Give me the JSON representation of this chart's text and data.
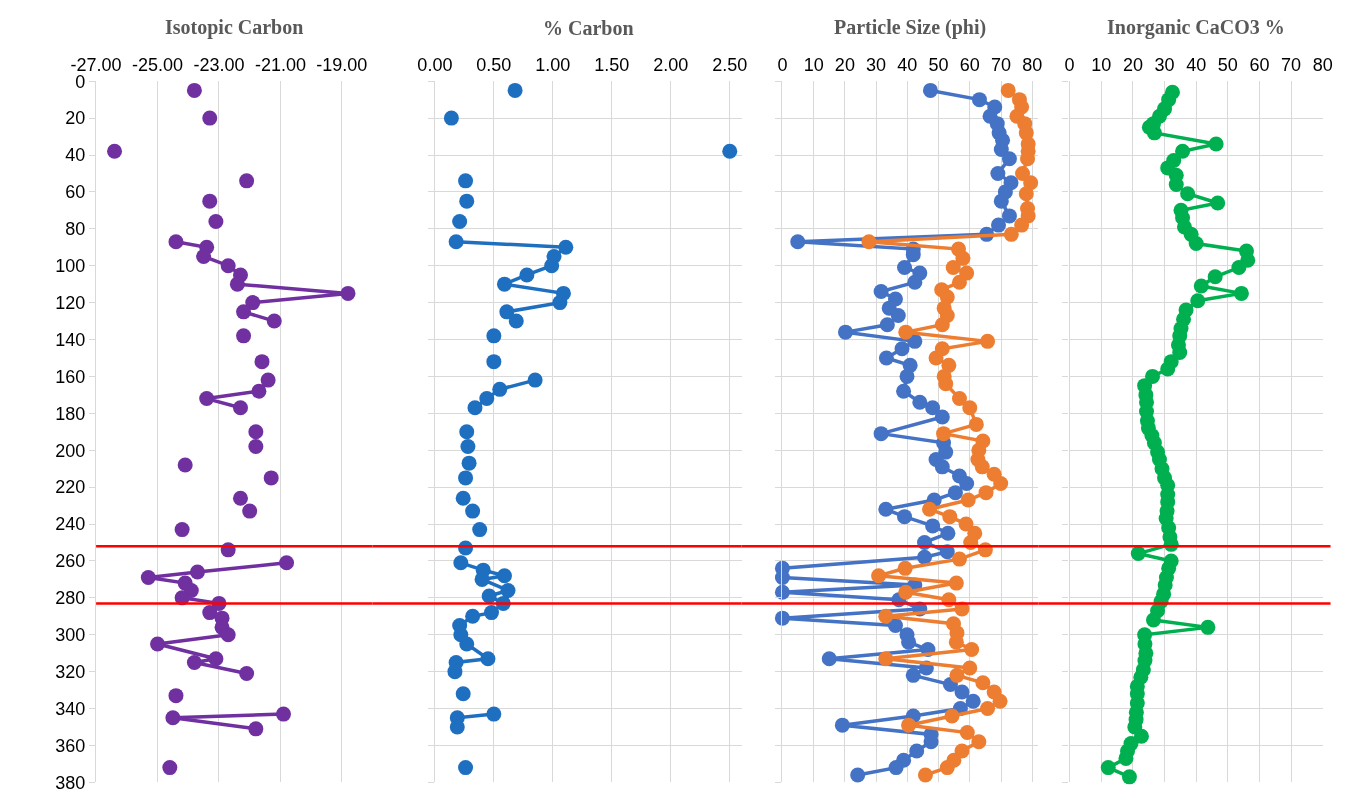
{
  "chart_data": [
    {
      "type": "line",
      "title": "Isotopic Carbon",
      "xlim": [
        -27,
        -18
      ],
      "xticks": [
        {
          "value": -27,
          "label": "-27.00"
        },
        {
          "value": -25,
          "label": "-25.00"
        },
        {
          "value": -23,
          "label": "-23.00"
        },
        {
          "value": -21,
          "label": "-21.00"
        },
        {
          "value": -19,
          "label": "-19.00"
        }
      ],
      "ylim": [
        380,
        0
      ],
      "yticks": [
        0,
        20,
        40,
        60,
        80,
        100,
        120,
        140,
        160,
        180,
        200,
        220,
        240,
        260,
        280,
        300,
        320,
        340,
        360,
        380
      ],
      "grid": "x",
      "marker": "circle",
      "series": [
        {
          "color": "#7030a0",
          "x": [
            -23.8,
            null,
            -23.3,
            null,
            -26.4,
            null,
            -22.1,
            null,
            -23.3,
            null,
            -23.1,
            null,
            -24.4,
            -23.4,
            -23.5,
            -22.7,
            -22.3,
            -22.4,
            -18.8,
            -21.9,
            -22.2,
            -21.2,
            null,
            -22.2,
            null,
            -21.6,
            null,
            -21.4,
            -21.7,
            -23.4,
            -22.3,
            null,
            -21.8,
            null,
            -21.8,
            null,
            -24.1,
            null,
            -21.3,
            null,
            -22.3,
            null,
            -22.0,
            null,
            -24.2,
            null,
            -22.7,
            null,
            -20.8,
            -23.7,
            -25.3,
            -24.1,
            -23.9,
            -24.2,
            -23.0,
            -23.3,
            -22.9,
            -22.9,
            -22.7,
            -25.0,
            -23.1,
            -23.8,
            -22.1,
            null,
            -24.4,
            null,
            -20.9,
            -24.5,
            -21.8,
            null,
            -24.6
          ],
          "values": [
            5,
            null,
            20,
            null,
            38,
            null,
            54,
            null,
            65,
            null,
            76,
            null,
            87,
            90,
            95,
            100,
            105,
            110,
            115,
            120,
            125,
            130,
            null,
            138,
            null,
            152,
            null,
            162,
            168,
            172,
            177,
            null,
            190,
            null,
            198,
            null,
            208,
            null,
            215,
            null,
            226,
            null,
            233,
            null,
            243,
            null,
            254,
            null,
            261,
            266,
            269,
            272,
            276,
            280,
            283,
            288,
            291,
            296,
            300,
            305,
            313,
            315,
            321,
            null,
            333,
            null,
            343,
            345,
            351,
            null,
            372
          ]
        }
      ],
      "ref_lines": [
        {
          "axis": "y",
          "value": 252,
          "color": "#ff0000"
        },
        {
          "axis": "y",
          "value": 283,
          "color": "#ff0000"
        }
      ]
    },
    {
      "type": "line",
      "title": "% Carbon",
      "xlim": [
        0,
        2.6
      ],
      "xticks": [
        {
          "value": 0,
          "label": "0.00"
        },
        {
          "value": 0.5,
          "label": "0.50"
        },
        {
          "value": 1,
          "label": "1.00"
        },
        {
          "value": 1.5,
          "label": "1.50"
        },
        {
          "value": 2,
          "label": "2.00"
        },
        {
          "value": 2.5,
          "label": "2.50"
        }
      ],
      "ylim": [
        380,
        0
      ],
      "yticks": [
        0,
        20,
        40,
        60,
        80,
        100,
        120,
        140,
        160,
        180,
        200,
        220,
        240,
        260,
        280,
        300,
        320,
        340,
        360,
        380
      ],
      "grid": true,
      "marker": "circle",
      "tick_labels": "x",
      "series": [
        {
          "color": "#1f6fc0",
          "x": [
            0.68,
            null,
            0.14,
            null,
            2.5,
            null,
            0.26,
            null,
            0.27,
            null,
            0.21,
            null,
            0.18,
            1.11,
            1.01,
            0.99,
            0.78,
            0.59,
            1.09,
            1.06,
            0.61,
            0.69,
            null,
            0.5,
            null,
            0.5,
            null,
            0.85,
            0.55,
            0.44,
            0.34,
            null,
            0.27,
            null,
            0.28,
            null,
            0.29,
            null,
            0.26,
            null,
            0.24,
            null,
            0.32,
            null,
            0.38,
            null,
            0.26,
            null,
            0.22,
            0.41,
            0.59,
            0.4,
            0.62,
            0.46,
            0.58,
            0.48,
            0.32,
            0.21,
            0.22,
            0.27,
            0.45,
            0.18,
            0.17,
            null,
            0.24,
            null,
            0.5,
            0.19,
            0.19,
            null,
            0.26
          ],
          "values": [
            5,
            null,
            20,
            null,
            38,
            null,
            54,
            null,
            65,
            null,
            76,
            null,
            87,
            90,
            95,
            100,
            105,
            110,
            115,
            120,
            125,
            130,
            null,
            138,
            null,
            152,
            null,
            162,
            167,
            172,
            177,
            null,
            190,
            null,
            198,
            null,
            207,
            null,
            215,
            null,
            226,
            null,
            233,
            null,
            243,
            null,
            253,
            null,
            261,
            265,
            268,
            270,
            276,
            279,
            283,
            288,
            290,
            295,
            300,
            305,
            313,
            315,
            320,
            null,
            332,
            null,
            343,
            345,
            350,
            null,
            372
          ]
        }
      ],
      "ref_lines": [
        {
          "axis": "y",
          "value": 252,
          "color": "#ff0000"
        },
        {
          "axis": "y",
          "value": 283,
          "color": "#ff0000"
        }
      ]
    },
    {
      "type": "line",
      "title": "Particle Size (phi)",
      "xlim": [
        0,
        82
      ],
      "xticks": [
        0,
        10,
        20,
        30,
        40,
        50,
        60,
        70,
        80
      ],
      "ylim": [
        380,
        0
      ],
      "yticks": [
        0,
        20,
        40,
        60,
        80,
        100,
        120,
        140,
        160,
        180,
        200,
        220,
        240,
        260,
        280,
        300,
        320,
        340,
        360,
        380
      ],
      "grid": true,
      "marker": "circle",
      "tick_labels": "x",
      "series": [
        {
          "color": "#4472c4",
          "x": [
            47.4,
            63.1,
            68.0,
            66.5,
            68.8,
            69.4,
            70.5,
            70.1,
            72.7,
            69.0,
            73.2,
            71.4,
            70.1,
            72.7,
            69.2,
            65.4,
            4.9,
            41.9,
            41.9,
            39.1,
            44.0,
            42.4,
            31.6,
            36.2,
            34.2,
            37.1,
            33.6,
            20.2,
            42.4,
            38.3,
            33.3,
            40.9,
            39.9,
            38.8,
            44.0,
            48.1,
            51.2,
            31.6,
            51.6,
            52.3,
            49.2,
            51.2,
            56.7,
            59.0,
            55.4,
            48.6,
            33.1,
            39.1,
            48.1,
            53.0,
            45.5,
            52.8,
            45.5,
            0,
            0,
            42.4,
            0,
            37.3,
            44.0,
            0,
            36.2,
            39.9,
            40.4,
            46.6,
            15.0,
            46.1,
            41.9,
            53.8,
            57.5,
            61.1,
            57.0,
            41.9,
            19.2,
            47.6,
            47.6,
            43.0,
            38.8,
            36.4,
            24.1
          ],
          "values": [
            5,
            10,
            14,
            19,
            23,
            28,
            32,
            37,
            42,
            50,
            55,
            60,
            65,
            73,
            78,
            83,
            87,
            91,
            94,
            101,
            104,
            109,
            114,
            118,
            123,
            127,
            132,
            136,
            141,
            145,
            150,
            154,
            160,
            168,
            174,
            177,
            182,
            191,
            196,
            201,
            205,
            209,
            214,
            218,
            223,
            227,
            232,
            236,
            241,
            245,
            250,
            255,
            258,
            264,
            269,
            273,
            277,
            281,
            286,
            291,
            295,
            300,
            304,
            308,
            313,
            318,
            322,
            327,
            331,
            336,
            340,
            344,
            349,
            354,
            358,
            363,
            368,
            372,
            376
          ]
        },
        {
          "color": "#ed7d31",
          "x": [
            72.3,
            75.9,
            76.6,
            75.1,
            77.6,
            78.1,
            78.7,
            78.7,
            78.5,
            76.9,
            79.5,
            78.1,
            78.5,
            78.7,
            76.6,
            73.3,
            27.7,
            56.4,
            57.8,
            54.7,
            59.0,
            56.7,
            51.0,
            52.8,
            51.8,
            52.8,
            51.2,
            39.5,
            65.7,
            51.2,
            49.2,
            53.3,
            51.8,
            52.3,
            56.7,
            60.0,
            62.1,
            51.6,
            64.2,
            62.9,
            62.6,
            64.0,
            67.8,
            69.9,
            65.2,
            59.5,
            47.1,
            53.6,
            58.8,
            61.6,
            60.3,
            65.0,
            56.7,
            39.3,
            30.8,
            55.7,
            39.5,
            53.3,
            57.5,
            33.1,
            54.8,
            55.9,
            55.7,
            60.6,
            33.1,
            60.0,
            55.9,
            64.2,
            67.8,
            69.7,
            65.7,
            54.3,
            40.4,
            59.2,
            62.9,
            57.5,
            54.9,
            52.8,
            45.8
          ],
          "values": [
            5,
            10,
            14,
            19,
            23,
            28,
            34,
            38,
            42,
            50,
            55,
            61,
            69,
            73,
            78,
            83,
            87,
            91,
            96,
            101,
            104,
            109,
            113,
            117,
            123,
            127,
            132,
            136,
            141,
            145,
            150,
            154,
            160,
            164,
            172,
            177,
            186,
            191,
            195,
            200,
            205,
            209,
            213,
            218,
            223,
            227,
            232,
            236,
            240,
            245,
            250,
            254,
            259,
            264,
            268,
            272,
            277,
            281,
            286,
            290,
            294,
            299,
            304,
            308,
            313,
            318,
            322,
            326,
            331,
            336,
            340,
            344,
            349,
            353,
            358,
            363,
            368,
            372,
            376
          ]
        }
      ],
      "ref_lines": [
        {
          "axis": "y",
          "value": 252,
          "color": "#ff0000"
        },
        {
          "axis": "y",
          "value": 283,
          "color": "#ff0000"
        }
      ]
    },
    {
      "type": "line",
      "title": "Inorganic CaCO3 %",
      "xlim": [
        0,
        80
      ],
      "xticks": [
        0,
        10,
        20,
        30,
        40,
        50,
        60,
        70,
        80
      ],
      "ylim": [
        380,
        0
      ],
      "yticks": [
        0,
        20,
        40,
        60,
        80,
        100,
        120,
        140,
        160,
        180,
        200,
        220,
        240,
        260,
        280,
        300,
        320,
        340,
        360,
        380
      ],
      "grid": true,
      "marker": "circle",
      "tick_labels": "x",
      "series": [
        {
          "color": "#00b050",
          "x": [
            32.5,
            31.3,
            30.0,
            28.4,
            26.5,
            25.2,
            26.8,
            46.3,
            35.7,
            32.9,
            31.0,
            33.7,
            33.7,
            37.3,
            46.8,
            35.2,
            35.7,
            36.3,
            38.4,
            40.0,
            55.9,
            56.3,
            53.5,
            46.0,
            41.6,
            54.3,
            40.5,
            36.8,
            36.0,
            35.2,
            34.8,
            34.4,
            34.8,
            32.1,
            31.0,
            26.2,
            23.7,
            24.1,
            24.3,
            24.3,
            24.6,
            24.9,
            26.0,
            26.8,
            27.8,
            28.4,
            29.2,
            30.0,
            31.0,
            31.0,
            31.0,
            30.8,
            30.5,
            31.3,
            31.7,
            32.1,
            21.7,
            32.1,
            31.3,
            30.6,
            30.2,
            29.7,
            28.9,
            27.8,
            26.5,
            43.7,
            23.7,
            23.8,
            24.1,
            23.8,
            23.3,
            22.5,
            21.4,
            21.4,
            21.4,
            21.1,
            21.0,
            20.6,
            22.7,
            19.4,
            18.3,
            17.8,
            12.2,
            18.9
          ],
          "values": [
            6,
            10,
            15,
            19,
            23,
            25,
            28,
            34,
            38,
            43,
            47,
            51,
            56,
            61,
            66,
            70,
            74,
            79,
            83,
            88,
            92,
            97,
            101,
            106,
            111,
            115,
            119,
            124,
            129,
            134,
            138,
            143,
            147,
            152,
            156,
            160,
            165,
            170,
            174,
            179,
            184,
            188,
            192,
            196,
            201,
            205,
            210,
            215,
            219,
            224,
            228,
            233,
            237,
            242,
            247,
            251,
            256,
            260,
            264,
            269,
            273,
            278,
            282,
            287,
            292,
            296,
            300,
            305,
            310,
            314,
            319,
            323,
            328,
            332,
            337,
            342,
            346,
            350,
            355,
            359,
            363,
            367,
            372,
            377
          ]
        }
      ],
      "ref_lines": [
        {
          "axis": "y",
          "value": 252,
          "color": "#ff0000"
        },
        {
          "axis": "y",
          "value": 283,
          "color": "#ff0000"
        }
      ]
    }
  ]
}
